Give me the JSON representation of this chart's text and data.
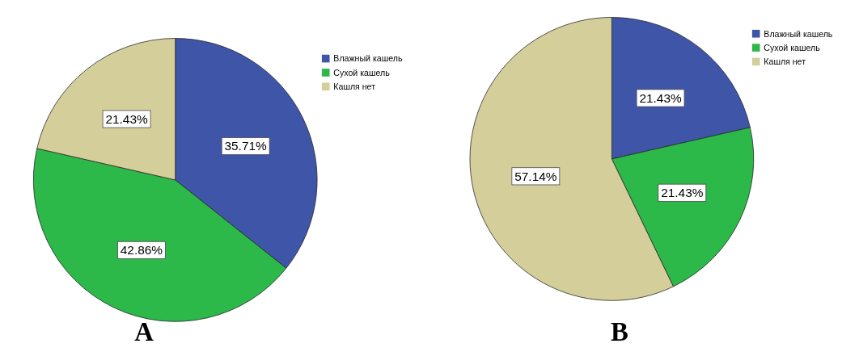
{
  "chart_data": [
    {
      "type": "pie",
      "title": "A",
      "categories": [
        "Влажный кашель",
        "Сухой кашель",
        "Кашля нет"
      ],
      "values": [
        35.71,
        42.86,
        21.43
      ],
      "value_labels": [
        "35.71%",
        "42.86%",
        "21.43%"
      ],
      "colors": [
        "#3f56a8",
        "#2db84a",
        "#d4cf9a"
      ],
      "legend": "top right"
    },
    {
      "type": "pie",
      "title": "B",
      "categories": [
        "Влажный кашель",
        "Сухой кашель",
        "Кашля нет"
      ],
      "values": [
        21.43,
        21.43,
        57.14
      ],
      "value_labels": [
        "21.43%",
        "21.43%",
        "57.14%"
      ],
      "colors": [
        "#3f56a8",
        "#2db84a",
        "#d4cf9a"
      ],
      "legend": "top right"
    }
  ]
}
